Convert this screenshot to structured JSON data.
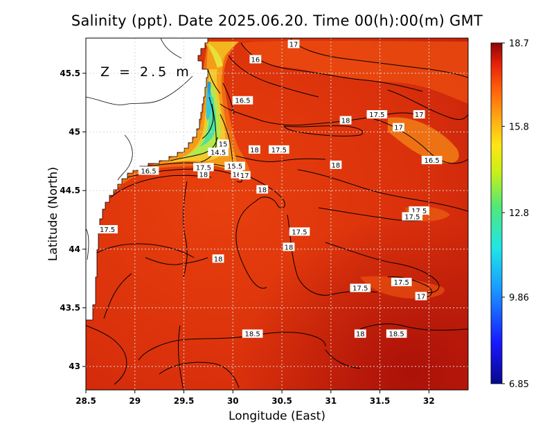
{
  "title": "Salinity (ppt). Date 2025.06.20. Time 00(h):00(m) GMT",
  "depth_label": "Z = 2.5 m",
  "colors": {
    "land": "#ffffff",
    "sea_high": "#d42a0c",
    "sea_mid": "#e8470e",
    "plume_orange": "#f4a11a",
    "plume_green": "#7fe060",
    "contour": "#000000",
    "grid": "#d8d8d8"
  },
  "chart_data": {
    "type": "heatmap",
    "xlabel": "Longitude (East)",
    "ylabel": "Latitude (North)",
    "xlim": [
      28.5,
      32.4
    ],
    "ylim": [
      42.8,
      45.8
    ],
    "xticks": [
      "28.5",
      "29",
      "29.5",
      "30",
      "30.5",
      "31",
      "31.5",
      "32"
    ],
    "yticks": [
      "43",
      "43.5",
      "44",
      "44.5",
      "45",
      "45.5"
    ],
    "grid": true,
    "colorbar": {
      "min": 6.85,
      "max": 18.7,
      "tick_labels": [
        "18.7",
        "15.8",
        "12.8",
        "9.86",
        "6.85"
      ],
      "tick_values": [
        18.7,
        15.8,
        12.8,
        9.86,
        6.85
      ]
    },
    "contour_labels": [
      {
        "text": "17",
        "lon": 30.62,
        "lat": 45.75
      },
      {
        "text": "16",
        "lon": 30.23,
        "lat": 45.62
      },
      {
        "text": "16.5",
        "lon": 30.1,
        "lat": 45.27
      },
      {
        "text": "17.5",
        "lon": 31.47,
        "lat": 45.15
      },
      {
        "text": "17",
        "lon": 31.9,
        "lat": 45.15
      },
      {
        "text": "18",
        "lon": 31.15,
        "lat": 45.1
      },
      {
        "text": "17",
        "lon": 31.69,
        "lat": 45.04
      },
      {
        "text": "15",
        "lon": 29.9,
        "lat": 44.9
      },
      {
        "text": "14.5",
        "lon": 29.85,
        "lat": 44.83
      },
      {
        "text": "18",
        "lon": 30.22,
        "lat": 44.85
      },
      {
        "text": "17.5",
        "lon": 30.47,
        "lat": 44.85
      },
      {
        "text": "16.5",
        "lon": 32.03,
        "lat": 44.76
      },
      {
        "text": "18",
        "lon": 31.05,
        "lat": 44.72
      },
      {
        "text": "16.5",
        "lon": 29.14,
        "lat": 44.67
      },
      {
        "text": "17.5",
        "lon": 29.7,
        "lat": 44.7
      },
      {
        "text": "18",
        "lon": 29.7,
        "lat": 44.64
      },
      {
        "text": "15.5",
        "lon": 30.02,
        "lat": 44.71
      },
      {
        "text": "16",
        "lon": 30.04,
        "lat": 44.64
      },
      {
        "text": "17",
        "lon": 30.12,
        "lat": 44.63
      },
      {
        "text": "18",
        "lon": 30.3,
        "lat": 44.51
      },
      {
        "text": "17.5",
        "lon": 31.9,
        "lat": 44.33
      },
      {
        "text": "17.5",
        "lon": 31.83,
        "lat": 44.28
      },
      {
        "text": "17.5",
        "lon": 28.72,
        "lat": 44.17
      },
      {
        "text": "17.5",
        "lon": 30.68,
        "lat": 44.15
      },
      {
        "text": "18",
        "lon": 30.57,
        "lat": 44.02
      },
      {
        "text": "18",
        "lon": 29.85,
        "lat": 43.92
      },
      {
        "text": "17.5",
        "lon": 31.72,
        "lat": 43.72
      },
      {
        "text": "17.5",
        "lon": 31.3,
        "lat": 43.67
      },
      {
        "text": "17",
        "lon": 31.92,
        "lat": 43.6
      },
      {
        "text": "18.5",
        "lon": 30.2,
        "lat": 43.28
      },
      {
        "text": "18",
        "lon": 31.3,
        "lat": 43.28
      },
      {
        "text": "18.5",
        "lon": 31.67,
        "lat": 43.28
      }
    ]
  }
}
